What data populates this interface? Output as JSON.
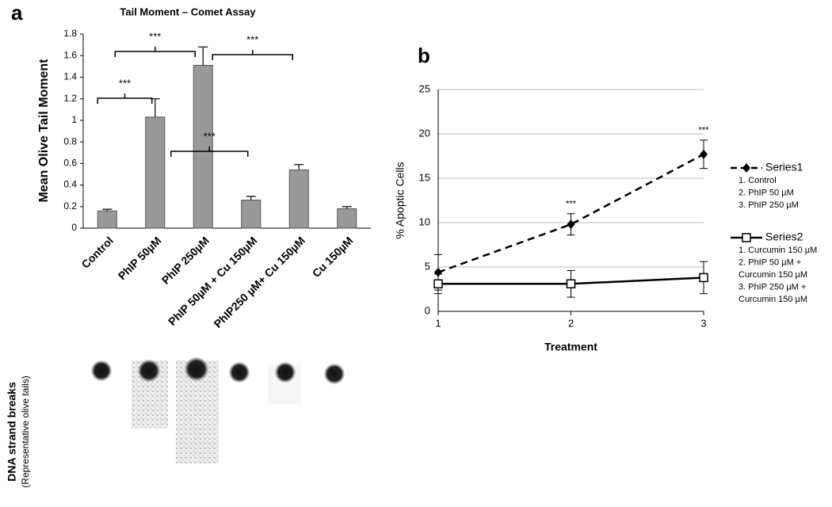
{
  "chart_data": [
    {
      "type": "bar",
      "panel": "a",
      "title": "Tail Moment – Comet Assay",
      "y_label": "Mean Olive Tail Moment",
      "categories": [
        "Control",
        "PhIP 50µM",
        "PhIP 250µM",
        "PhIP 50µM + Cu 150µM",
        "PhIP250 µM+ Cu 150µM",
        "Cu 150µM"
      ],
      "values": [
        0.16,
        1.03,
        1.51,
        0.26,
        0.54,
        0.18
      ],
      "errors": [
        0.015,
        0.17,
        0.17,
        0.035,
        0.05,
        0.02
      ],
      "color": "#999999",
      "ylim": [
        0,
        1.8
      ],
      "yticks": [
        0,
        0.2,
        0.4,
        0.6,
        0.8,
        1,
        1.2,
        1.4,
        1.6,
        1.8
      ],
      "annotations": [
        "***",
        "***",
        "***",
        "***"
      ],
      "image_caption": "DNA strand breaks",
      "image_subcaption": "(Representative olive tails)"
    },
    {
      "type": "line",
      "panel": "b",
      "x_label": "Treatment",
      "y_label": "% Apoptic Cells",
      "x": [
        1,
        2,
        3
      ],
      "xlim": [
        1,
        3
      ],
      "xticks": [
        1,
        2,
        3
      ],
      "ylim": [
        0,
        25
      ],
      "yticks": [
        0,
        5,
        10,
        15,
        20,
        25
      ],
      "grid": true,
      "series": [
        {
          "name": "Series1",
          "color": "#000000",
          "dashed": true,
          "marker": "diamond",
          "values": [
            4.4,
            9.8,
            17.7
          ],
          "errors": [
            2,
            1.2,
            1.6
          ],
          "significance": [
            null,
            "***",
            "***"
          ],
          "notes": [
            "1. Control",
            "2. PhIP 50 µM",
            "3. PhIP 250 µM"
          ]
        },
        {
          "name": "Series2",
          "color": "#000000",
          "dashed": false,
          "marker": "square",
          "values": [
            3.1,
            3.1,
            3.8
          ],
          "errors": [
            1.1,
            1.5,
            1.8
          ],
          "significance": [
            null,
            null,
            null
          ],
          "notes": [
            "1. Curcumin 150 µM",
            "2. PhIP 50 µM +",
            "Curcumin 150 µM",
            "3. PhIP 250 µM +",
            "Curcumin 150 µM"
          ]
        }
      ]
    }
  ]
}
